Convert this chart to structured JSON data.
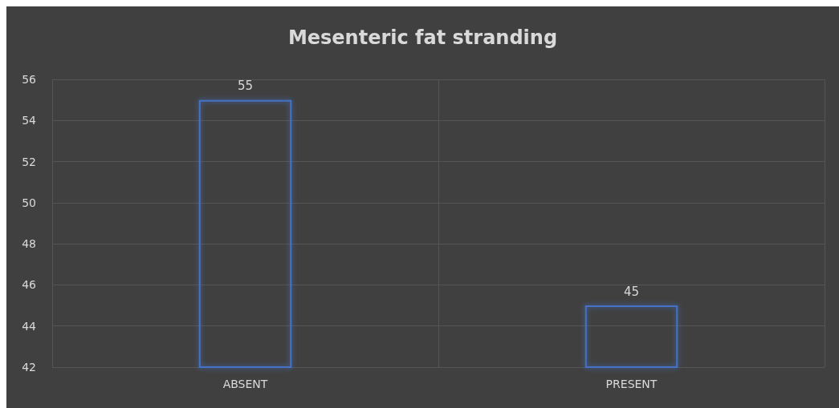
{
  "chart_data": {
    "type": "bar",
    "title": "Mesenteric fat stranding",
    "categories": [
      "ABSENT",
      "PRESENT"
    ],
    "values": [
      55,
      45
    ],
    "color": "#4472c4",
    "ylim": [
      42,
      56
    ],
    "yticks": [
      42,
      44,
      46,
      48,
      50,
      52,
      54,
      56
    ],
    "grid": true,
    "data_labels": true
  }
}
